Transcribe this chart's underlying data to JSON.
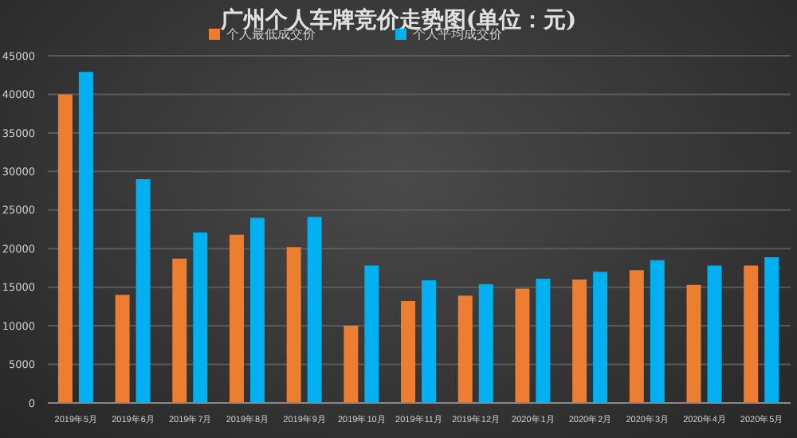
{
  "chart_data": {
    "type": "bar",
    "title": "广州个人车牌竞价走势图(单位：元)",
    "categories": [
      "2019年5月",
      "2019年6月",
      "2019年7月",
      "2019年8月",
      "2019年9月",
      "2019年10月",
      "2019年11月",
      "2019年12月",
      "2020年1月",
      "2020年2月",
      "2020年3月",
      "2020年4月",
      "2020年5月"
    ],
    "series": [
      {
        "name": "个人最低成交价",
        "color": "#ed7d31",
        "values": [
          40000,
          14000,
          18700,
          21800,
          20200,
          10000,
          13200,
          13900,
          14800,
          16000,
          17200,
          15300,
          17800
        ]
      },
      {
        "name": "个人平均成交价",
        "color": "#00b0f0",
        "values": [
          42900,
          29000,
          22100,
          24000,
          24100,
          17800,
          15900,
          15400,
          16100,
          17000,
          18500,
          17800,
          18900
        ]
      }
    ],
    "ylim": [
      0,
      45000
    ],
    "yticks": [
      0,
      5000,
      10000,
      15000,
      20000,
      25000,
      30000,
      35000,
      40000,
      45000
    ],
    "grid": "y",
    "legend": "top"
  }
}
